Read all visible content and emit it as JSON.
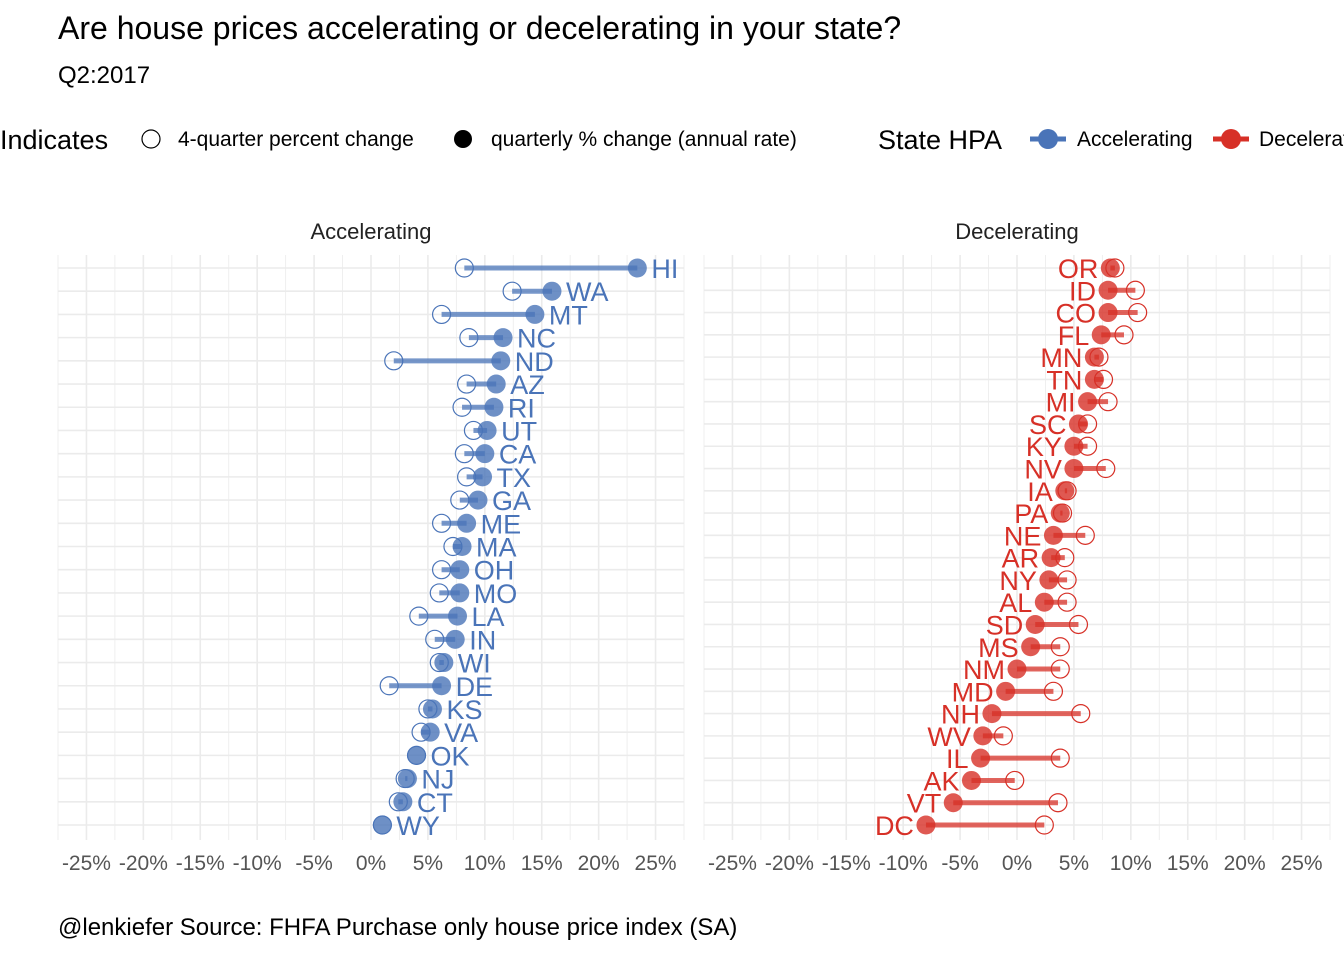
{
  "title": "Are house prices accelerating or decelerating in your state?",
  "subtitle": "Q2:2017",
  "caption": "@lenkiefer Source: FHFA Purchase only house price index (SA)",
  "colors": {
    "accelerating": "#4a74b8",
    "decelerating": "#d73027",
    "grid": "#ebebeb",
    "tick": "#555555"
  },
  "legend": {
    "indicates_title": "Indicates",
    "open_label": "4-quarter percent change",
    "filled_label": "quarterly % change (annual rate)",
    "hpa_title": "State HPA",
    "hpa_items": [
      "Accelerating",
      "Decelerating"
    ]
  },
  "chart_data": {
    "type": "dot-line",
    "title": "Are house prices accelerating or decelerating in your state?",
    "subtitle": "Q2:2017",
    "x_axis": {
      "ticks": [
        -25,
        -20,
        -15,
        -10,
        -5,
        0,
        5,
        10,
        15,
        20,
        25
      ],
      "tick_labels": [
        "-25%",
        "-20%",
        "-15%",
        "-10%",
        "-5%",
        "0%",
        "5%",
        "10%",
        "15%",
        "20%",
        "25%"
      ],
      "range": [
        -27.5,
        27.5
      ]
    },
    "legend_position": "top",
    "grid": true,
    "panels": [
      {
        "name": "Accelerating",
        "states": [
          {
            "state": "HI",
            "quarterly": 23.4,
            "yoy": 8.2
          },
          {
            "state": "WA",
            "quarterly": 15.9,
            "yoy": 12.4
          },
          {
            "state": "MT",
            "quarterly": 14.4,
            "yoy": 6.2
          },
          {
            "state": "NC",
            "quarterly": 11.6,
            "yoy": 8.6
          },
          {
            "state": "ND",
            "quarterly": 11.4,
            "yoy": 2.0
          },
          {
            "state": "AZ",
            "quarterly": 11.0,
            "yoy": 8.4
          },
          {
            "state": "RI",
            "quarterly": 10.8,
            "yoy": 8.0
          },
          {
            "state": "UT",
            "quarterly": 10.2,
            "yoy": 9.0
          },
          {
            "state": "CA",
            "quarterly": 10.0,
            "yoy": 8.2
          },
          {
            "state": "TX",
            "quarterly": 9.8,
            "yoy": 8.4
          },
          {
            "state": "GA",
            "quarterly": 9.4,
            "yoy": 7.8
          },
          {
            "state": "ME",
            "quarterly": 8.4,
            "yoy": 6.2
          },
          {
            "state": "MA",
            "quarterly": 8.0,
            "yoy": 7.2
          },
          {
            "state": "OH",
            "quarterly": 7.8,
            "yoy": 6.2
          },
          {
            "state": "MO",
            "quarterly": 7.8,
            "yoy": 6.0
          },
          {
            "state": "LA",
            "quarterly": 7.6,
            "yoy": 4.2
          },
          {
            "state": "IN",
            "quarterly": 7.4,
            "yoy": 5.6
          },
          {
            "state": "WI",
            "quarterly": 6.4,
            "yoy": 6.0
          },
          {
            "state": "DE",
            "quarterly": 6.2,
            "yoy": 1.6
          },
          {
            "state": "KS",
            "quarterly": 5.4,
            "yoy": 5.0
          },
          {
            "state": "VA",
            "quarterly": 5.2,
            "yoy": 4.4
          },
          {
            "state": "OK",
            "quarterly": 4.0,
            "yoy": 4.0
          },
          {
            "state": "NJ",
            "quarterly": 3.2,
            "yoy": 3.0
          },
          {
            "state": "CT",
            "quarterly": 2.8,
            "yoy": 2.4
          },
          {
            "state": "WY",
            "quarterly": 1.0,
            "yoy": 1.0
          }
        ]
      },
      {
        "name": "Decelerating",
        "states": [
          {
            "state": "OR",
            "quarterly": 8.2,
            "yoy": 8.6
          },
          {
            "state": "ID",
            "quarterly": 8.0,
            "yoy": 10.4
          },
          {
            "state": "CO",
            "quarterly": 8.0,
            "yoy": 10.6
          },
          {
            "state": "FL",
            "quarterly": 7.4,
            "yoy": 9.4
          },
          {
            "state": "MN",
            "quarterly": 6.8,
            "yoy": 7.2
          },
          {
            "state": "TN",
            "quarterly": 6.8,
            "yoy": 7.6
          },
          {
            "state": "MI",
            "quarterly": 6.2,
            "yoy": 8.0
          },
          {
            "state": "SC",
            "quarterly": 5.4,
            "yoy": 6.2
          },
          {
            "state": "KY",
            "quarterly": 5.0,
            "yoy": 6.2
          },
          {
            "state": "NV",
            "quarterly": 5.0,
            "yoy": 7.8
          },
          {
            "state": "IA",
            "quarterly": 4.2,
            "yoy": 4.4
          },
          {
            "state": "PA",
            "quarterly": 3.8,
            "yoy": 4.0
          },
          {
            "state": "NE",
            "quarterly": 3.2,
            "yoy": 6.0
          },
          {
            "state": "AR",
            "quarterly": 3.0,
            "yoy": 4.2
          },
          {
            "state": "NY",
            "quarterly": 2.8,
            "yoy": 4.4
          },
          {
            "state": "AL",
            "quarterly": 2.4,
            "yoy": 4.4
          },
          {
            "state": "SD",
            "quarterly": 1.6,
            "yoy": 5.4
          },
          {
            "state": "MS",
            "quarterly": 1.2,
            "yoy": 3.8
          },
          {
            "state": "NM",
            "quarterly": 0.0,
            "yoy": 3.8
          },
          {
            "state": "MD",
            "quarterly": -1.0,
            "yoy": 3.2
          },
          {
            "state": "NH",
            "quarterly": -2.2,
            "yoy": 5.6
          },
          {
            "state": "WV",
            "quarterly": -3.0,
            "yoy": -1.2
          },
          {
            "state": "IL",
            "quarterly": -3.2,
            "yoy": 3.8
          },
          {
            "state": "AK",
            "quarterly": -4.0,
            "yoy": -0.2
          },
          {
            "state": "VT",
            "quarterly": -5.6,
            "yoy": 3.6
          },
          {
            "state": "DC",
            "quarterly": -8.0,
            "yoy": 2.4
          }
        ]
      }
    ]
  }
}
